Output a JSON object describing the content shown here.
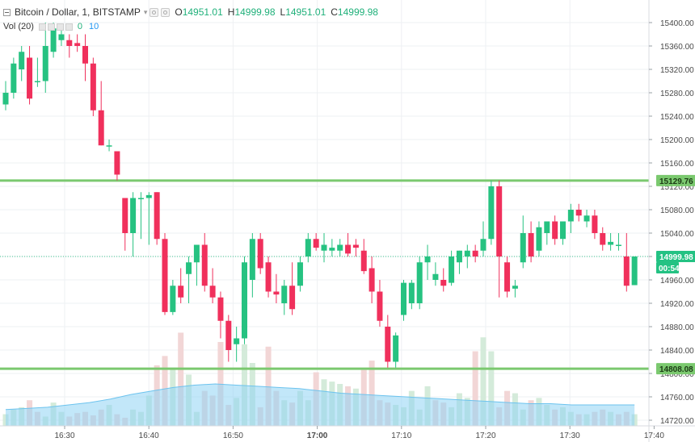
{
  "legend": {
    "symbol": "Bitcoin / Dollar, 1, BITSTAMP",
    "o_label": "O",
    "o_value": "14951.01",
    "h_label": "H",
    "h_value": "14999.98",
    "l_label": "L",
    "l_value": "14951.01",
    "c_label": "C",
    "c_value": "14999.98"
  },
  "volume_legend": {
    "label": "Vol (20)",
    "value1": "0",
    "value2": "10"
  },
  "colors": {
    "up": "#26c281",
    "down": "#f0305c",
    "level_line": "#7bc96f",
    "volume_up": "#cfe9d6",
    "volume_down": "#f1d2d2",
    "volume_ma": "#8fd3f4"
  },
  "price_badges": {
    "upper_level": "15129.76",
    "last_price": "14999.98",
    "countdown": "00:54",
    "lower_level": "14808.08"
  },
  "chart_data": {
    "type": "candlestick",
    "y_ticks": [
      "15400.00",
      "15360.00",
      "15320.00",
      "15280.00",
      "15240.00",
      "15200.00",
      "15160.00",
      "15120.00",
      "15080.00",
      "15040.00",
      "15000.00",
      "14960.00",
      "14920.00",
      "14880.00",
      "14840.00",
      "14800.00",
      "14760.00",
      "14720.00"
    ],
    "x_ticks": [
      "16:30",
      "16:40",
      "16:50",
      "17:00",
      "17:10",
      "17:20",
      "17:30",
      "17:40"
    ],
    "x_tick_bold": "17:00",
    "horizontal_levels": [
      15129.76,
      14808.08
    ],
    "last_price": 14999.98,
    "candles": [
      {
        "o": 15260,
        "h": 15300,
        "l": 15250,
        "c": 15280
      },
      {
        "o": 15280,
        "h": 15340,
        "l": 15270,
        "c": 15330
      },
      {
        "o": 15320,
        "h": 15360,
        "l": 15300,
        "c": 15350
      },
      {
        "o": 15340,
        "h": 15360,
        "l": 15260,
        "c": 15270
      },
      {
        "o": 15300,
        "h": 15340,
        "l": 15290,
        "c": 15300
      },
      {
        "o": 15300,
        "h": 15400,
        "l": 15280,
        "c": 15360
      },
      {
        "o": 15350,
        "h": 15400,
        "l": 15340,
        "c": 15390
      },
      {
        "o": 15370,
        "h": 15390,
        "l": 15360,
        "c": 15380
      },
      {
        "o": 15370,
        "h": 15380,
        "l": 15340,
        "c": 15360
      },
      {
        "o": 15365,
        "h": 15380,
        "l": 15350,
        "c": 15360
      },
      {
        "o": 15360,
        "h": 15380,
        "l": 15300,
        "c": 15330
      },
      {
        "o": 15330,
        "h": 15340,
        "l": 15240,
        "c": 15250
      },
      {
        "o": 15250,
        "h": 15300,
        "l": 15190,
        "c": 15190
      },
      {
        "o": 15190,
        "h": 15200,
        "l": 15180,
        "c": 15190
      },
      {
        "o": 15180,
        "h": 15180,
        "l": 15130,
        "c": 15140
      },
      {
        "o": 15100,
        "h": 15100,
        "l": 15010,
        "c": 15040
      },
      {
        "o": 15040,
        "h": 15110,
        "l": 15000,
        "c": 15100
      },
      {
        "o": 15100,
        "h": 15110,
        "l": 15030,
        "c": 15100
      },
      {
        "o": 15100,
        "h": 15110,
        "l": 15020,
        "c": 15105
      },
      {
        "o": 15110,
        "h": 15110,
        "l": 15020,
        "c": 15030
      },
      {
        "o": 15030,
        "h": 15040,
        "l": 14900,
        "c": 14905
      },
      {
        "o": 14905,
        "h": 14960,
        "l": 14900,
        "c": 14950
      },
      {
        "o": 14950,
        "h": 14980,
        "l": 14920,
        "c": 14930
      },
      {
        "o": 14970,
        "h": 15000,
        "l": 14920,
        "c": 14990
      },
      {
        "o": 14990,
        "h": 15020,
        "l": 14950,
        "c": 15020
      },
      {
        "o": 15020,
        "h": 15040,
        "l": 14940,
        "c": 14950
      },
      {
        "o": 14950,
        "h": 14980,
        "l": 14920,
        "c": 14930
      },
      {
        "o": 14930,
        "h": 14940,
        "l": 14860,
        "c": 14890
      },
      {
        "o": 14890,
        "h": 14900,
        "l": 14820,
        "c": 14840
      },
      {
        "o": 14850,
        "h": 14880,
        "l": 14820,
        "c": 14860
      },
      {
        "o": 14860,
        "h": 15000,
        "l": 14850,
        "c": 14990
      },
      {
        "o": 14960,
        "h": 15040,
        "l": 14930,
        "c": 15030
      },
      {
        "o": 15030,
        "h": 15040,
        "l": 14970,
        "c": 14980
      },
      {
        "o": 14990,
        "h": 15000,
        "l": 14930,
        "c": 14940
      },
      {
        "o": 14940,
        "h": 14970,
        "l": 14920,
        "c": 14935
      },
      {
        "o": 14920,
        "h": 14960,
        "l": 14900,
        "c": 14950
      },
      {
        "o": 14950,
        "h": 14990,
        "l": 14900,
        "c": 14910
      },
      {
        "o": 14950,
        "h": 15000,
        "l": 14940,
        "c": 14990
      },
      {
        "o": 15000,
        "h": 15040,
        "l": 14990,
        "c": 15030
      },
      {
        "o": 15030,
        "h": 15040,
        "l": 15010,
        "c": 15015
      },
      {
        "o": 15010,
        "h": 15040,
        "l": 14990,
        "c": 15020
      },
      {
        "o": 15010,
        "h": 15030,
        "l": 15000,
        "c": 15015
      },
      {
        "o": 15010,
        "h": 15030,
        "l": 15000,
        "c": 15020
      },
      {
        "o": 15020,
        "h": 15040,
        "l": 15000,
        "c": 15005
      },
      {
        "o": 15020,
        "h": 15030,
        "l": 15000,
        "c": 15015
      },
      {
        "o": 15010,
        "h": 15030,
        "l": 14970,
        "c": 14975
      },
      {
        "o": 14980,
        "h": 15000,
        "l": 14920,
        "c": 14940
      },
      {
        "o": 14940,
        "h": 14960,
        "l": 14880,
        "c": 14890
      },
      {
        "o": 14880,
        "h": 14900,
        "l": 14810,
        "c": 14820
      },
      {
        "o": 14820,
        "h": 14870,
        "l": 14810,
        "c": 14865
      },
      {
        "o": 14900,
        "h": 14960,
        "l": 14890,
        "c": 14955
      },
      {
        "o": 14920,
        "h": 14960,
        "l": 14910,
        "c": 14955
      },
      {
        "o": 14920,
        "h": 15000,
        "l": 14910,
        "c": 14990
      },
      {
        "o": 14990,
        "h": 15020,
        "l": 14960,
        "c": 15000
      },
      {
        "o": 14960,
        "h": 14990,
        "l": 14950,
        "c": 14970
      },
      {
        "o": 14960,
        "h": 14980,
        "l": 14940,
        "c": 14950
      },
      {
        "o": 14955,
        "h": 15010,
        "l": 14950,
        "c": 15000
      },
      {
        "o": 14990,
        "h": 15010,
        "l": 14970,
        "c": 15010
      },
      {
        "o": 15000,
        "h": 15020,
        "l": 14980,
        "c": 15010
      },
      {
        "o": 15010,
        "h": 15020,
        "l": 14990,
        "c": 15000
      },
      {
        "o": 15010,
        "h": 15060,
        "l": 15000,
        "c": 15030
      },
      {
        "o": 15030,
        "h": 15130,
        "l": 15020,
        "c": 15120
      },
      {
        "o": 15120,
        "h": 15130,
        "l": 14930,
        "c": 15000
      },
      {
        "o": 14990,
        "h": 15000,
        "l": 14930,
        "c": 14940
      },
      {
        "o": 14945,
        "h": 14960,
        "l": 14930,
        "c": 14950
      },
      {
        "o": 14990,
        "h": 15070,
        "l": 14980,
        "c": 15040
      },
      {
        "o": 15040,
        "h": 15060,
        "l": 14990,
        "c": 15000
      },
      {
        "o": 15010,
        "h": 15060,
        "l": 15000,
        "c": 15050
      },
      {
        "o": 15040,
        "h": 15060,
        "l": 15020,
        "c": 15060
      },
      {
        "o": 15060,
        "h": 15070,
        "l": 15020,
        "c": 15030
      },
      {
        "o": 15030,
        "h": 15060,
        "l": 15020,
        "c": 15060
      },
      {
        "o": 15060,
        "h": 15090,
        "l": 15040,
        "c": 15080
      },
      {
        "o": 15080,
        "h": 15090,
        "l": 15060,
        "c": 15070
      },
      {
        "o": 15060,
        "h": 15080,
        "l": 15050,
        "c": 15070
      },
      {
        "o": 15070,
        "h": 15080,
        "l": 15030,
        "c": 15040
      },
      {
        "o": 15040,
        "h": 15050,
        "l": 15010,
        "c": 15020
      },
      {
        "o": 15020,
        "h": 15040,
        "l": 15010,
        "c": 15025
      },
      {
        "o": 15020,
        "h": 15040,
        "l": 15010,
        "c": 15020
      },
      {
        "o": 15000,
        "h": 15040,
        "l": 14940,
        "c": 14950
      },
      {
        "o": 14951,
        "h": 15000,
        "l": 14951,
        "c": 15000
      }
    ],
    "volumes": [
      10,
      14,
      16,
      22,
      12,
      8,
      20,
      12,
      8,
      11,
      12,
      9,
      14,
      18,
      10,
      7,
      14,
      12,
      26,
      52,
      60,
      50,
      80,
      44,
      12,
      30,
      26,
      72,
      18,
      24,
      70,
      54,
      16,
      68,
      30,
      22,
      20,
      30,
      22,
      46,
      40,
      38,
      36,
      34,
      32,
      48,
      56,
      22,
      20,
      18,
      16,
      30,
      14,
      34,
      22,
      20,
      16,
      28,
      24,
      64,
      76,
      64,
      16,
      30,
      28,
      14,
      22,
      24,
      18,
      14,
      16,
      12,
      10,
      10,
      12,
      14,
      12,
      10,
      12,
      10
    ],
    "volume_up": [
      true,
      true,
      true,
      false,
      false,
      true,
      true,
      true,
      false,
      false,
      false,
      false,
      false,
      true,
      false,
      false,
      true,
      true,
      true,
      false,
      false,
      true,
      false,
      true,
      true,
      false,
      false,
      false,
      false,
      true,
      true,
      true,
      false,
      false,
      false,
      true,
      false,
      true,
      true,
      false,
      true,
      true,
      true,
      false,
      true,
      false,
      false,
      false,
      false,
      true,
      true,
      true,
      true,
      true,
      false,
      false,
      true,
      true,
      true,
      false,
      true,
      true,
      false,
      false,
      true,
      true,
      false,
      true,
      true,
      false,
      true,
      true,
      false,
      true,
      false,
      false,
      true,
      false,
      false,
      true
    ],
    "volume_ma": [
      14,
      15,
      16,
      18,
      20,
      23,
      27,
      30,
      33,
      35,
      36,
      35,
      34,
      33,
      32,
      30,
      28,
      27,
      26,
      25,
      24,
      23,
      22,
      21,
      20,
      19,
      19,
      18,
      18,
      18,
      18
    ]
  }
}
